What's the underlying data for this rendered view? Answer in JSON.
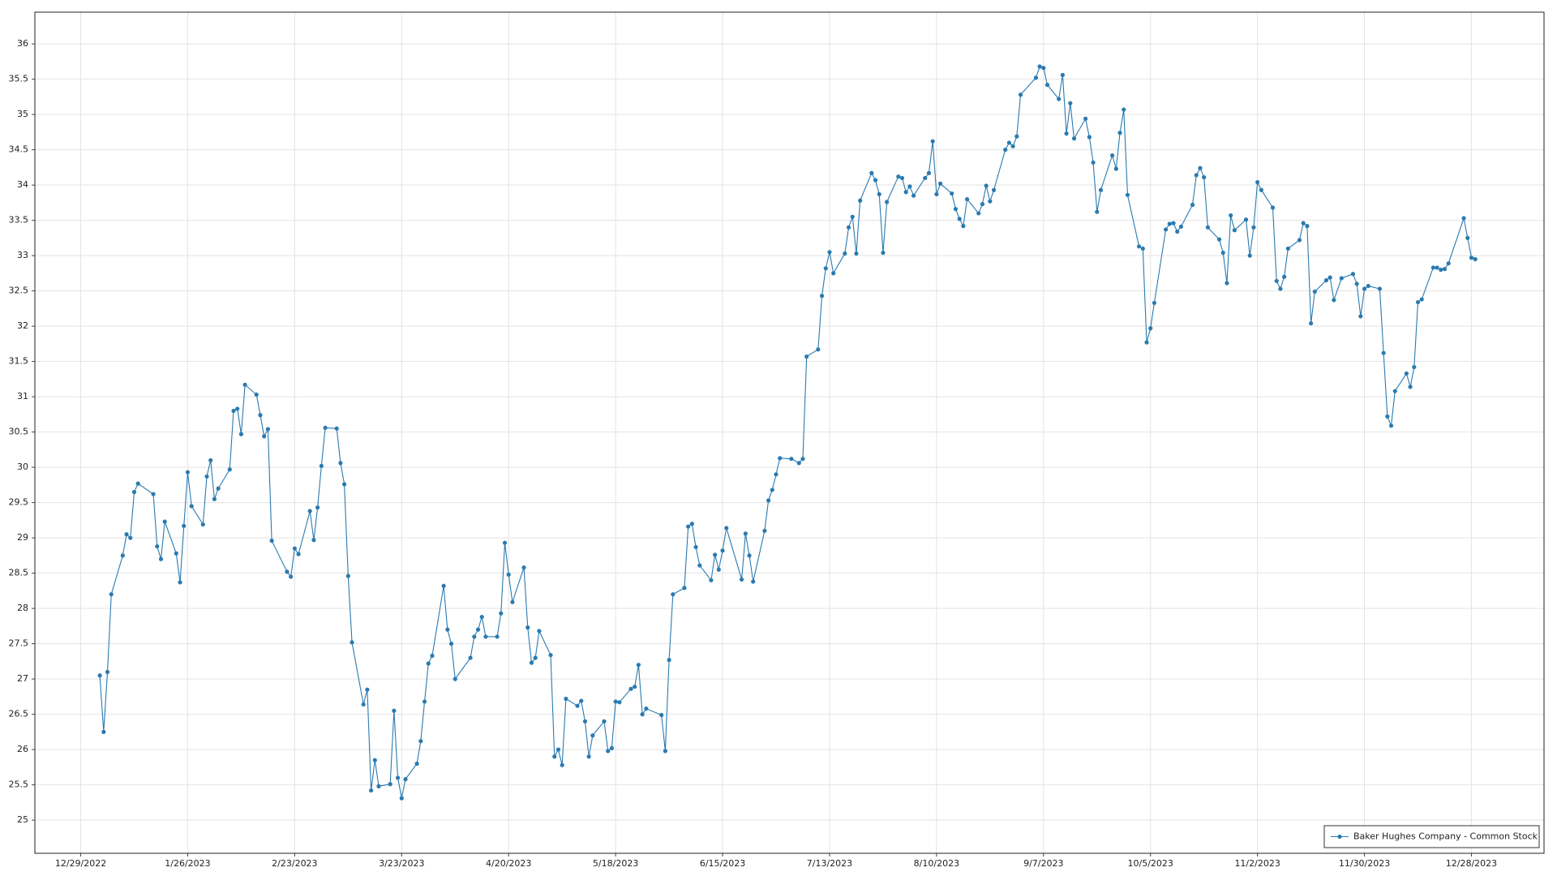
{
  "chart_data": {
    "type": "line",
    "x": [
      "1/3/2023",
      "1/4/2023",
      "1/5/2023",
      "1/6/2023",
      "1/9/2023",
      "1/10/2023",
      "1/11/2023",
      "1/12/2023",
      "1/13/2023",
      "1/17/2023",
      "1/18/2023",
      "1/19/2023",
      "1/20/2023",
      "1/23/2023",
      "1/24/2023",
      "1/25/2023",
      "1/26/2023",
      "1/27/2023",
      "1/30/2023",
      "1/31/2023",
      "2/1/2023",
      "2/2/2023",
      "2/3/2023",
      "2/6/2023",
      "2/7/2023",
      "2/8/2023",
      "2/9/2023",
      "2/10/2023",
      "2/13/2023",
      "2/14/2023",
      "2/15/2023",
      "2/16/2023",
      "2/17/2023",
      "2/21/2023",
      "2/22/2023",
      "2/23/2023",
      "2/24/2023",
      "2/27/2023",
      "2/28/2023",
      "3/1/2023",
      "3/2/2023",
      "3/3/2023",
      "3/6/2023",
      "3/7/2023",
      "3/8/2023",
      "3/9/2023",
      "3/10/2023",
      "3/13/2023",
      "3/14/2023",
      "3/15/2023",
      "3/16/2023",
      "3/17/2023",
      "3/20/2023",
      "3/21/2023",
      "3/22/2023",
      "3/23/2023",
      "3/24/2023",
      "3/27/2023",
      "3/28/2023",
      "3/29/2023",
      "3/30/2023",
      "3/31/2023",
      "4/3/2023",
      "4/4/2023",
      "4/5/2023",
      "4/6/2023",
      "4/10/2023",
      "4/11/2023",
      "4/12/2023",
      "4/13/2023",
      "4/14/2023",
      "4/17/2023",
      "4/18/2023",
      "4/19/2023",
      "4/20/2023",
      "4/21/2023",
      "4/24/2023",
      "4/25/2023",
      "4/26/2023",
      "4/27/2023",
      "4/28/2023",
      "5/1/2023",
      "5/2/2023",
      "5/3/2023",
      "5/4/2023",
      "5/5/2023",
      "5/8/2023",
      "5/9/2023",
      "5/10/2023",
      "5/11/2023",
      "5/12/2023",
      "5/15/2023",
      "5/16/2023",
      "5/17/2023",
      "5/18/2023",
      "5/19/2023",
      "5/22/2023",
      "5/23/2023",
      "5/24/2023",
      "5/25/2023",
      "5/26/2023",
      "5/30/2023",
      "5/31/2023",
      "6/1/2023",
      "6/2/2023",
      "6/5/2023",
      "6/6/2023",
      "6/7/2023",
      "6/8/2023",
      "6/9/2023",
      "6/12/2023",
      "6/13/2023",
      "6/14/2023",
      "6/15/2023",
      "6/16/2023",
      "6/20/2023",
      "6/21/2023",
      "6/22/2023",
      "6/23/2023",
      "6/26/2023",
      "6/27/2023",
      "6/28/2023",
      "6/29/2023",
      "6/30/2023",
      "7/3/2023",
      "7/5/2023",
      "7/6/2023",
      "7/7/2023",
      "7/10/2023",
      "7/11/2023",
      "7/12/2023",
      "7/13/2023",
      "7/14/2023",
      "7/17/2023",
      "7/18/2023",
      "7/19/2023",
      "7/20/2023",
      "7/21/2023",
      "7/24/2023",
      "7/25/2023",
      "7/26/2023",
      "7/27/2023",
      "7/28/2023",
      "7/31/2023",
      "8/1/2023",
      "8/2/2023",
      "8/3/2023",
      "8/4/2023",
      "8/7/2023",
      "8/8/2023",
      "8/9/2023",
      "8/10/2023",
      "8/11/2023",
      "8/14/2023",
      "8/15/2023",
      "8/16/2023",
      "8/17/2023",
      "8/18/2023",
      "8/21/2023",
      "8/22/2023",
      "8/23/2023",
      "8/24/2023",
      "8/25/2023",
      "8/28/2023",
      "8/29/2023",
      "8/30/2023",
      "8/31/2023",
      "9/1/2023",
      "9/5/2023",
      "9/6/2023",
      "9/7/2023",
      "9/8/2023",
      "9/11/2023",
      "9/12/2023",
      "9/13/2023",
      "9/14/2023",
      "9/15/2023",
      "9/18/2023",
      "9/19/2023",
      "9/20/2023",
      "9/21/2023",
      "9/22/2023",
      "9/25/2023",
      "9/26/2023",
      "9/27/2023",
      "9/28/2023",
      "9/29/2023",
      "10/2/2023",
      "10/3/2023",
      "10/4/2023",
      "10/5/2023",
      "10/6/2023",
      "10/9/2023",
      "10/10/2023",
      "10/11/2023",
      "10/12/2023",
      "10/13/2023",
      "10/16/2023",
      "10/17/2023",
      "10/18/2023",
      "10/19/2023",
      "10/20/2023",
      "10/23/2023",
      "10/24/2023",
      "10/25/2023",
      "10/26/2023",
      "10/27/2023",
      "10/30/2023",
      "10/31/2023",
      "11/1/2023",
      "11/2/2023",
      "11/3/2023",
      "11/6/2023",
      "11/7/2023",
      "11/8/2023",
      "11/9/2023",
      "11/10/2023",
      "11/13/2023",
      "11/14/2023",
      "11/15/2023",
      "11/16/2023",
      "11/17/2023",
      "11/20/2023",
      "11/21/2023",
      "11/22/2023",
      "11/24/2023",
      "11/27/2023",
      "11/28/2023",
      "11/29/2023",
      "11/30/2023",
      "12/1/2023",
      "12/4/2023",
      "12/5/2023",
      "12/6/2023",
      "12/7/2023",
      "12/8/2023",
      "12/11/2023",
      "12/12/2023",
      "12/13/2023",
      "12/14/2023",
      "12/15/2023",
      "12/18/2023",
      "12/19/2023",
      "12/20/2023",
      "12/21/2023",
      "12/22/2023",
      "12/26/2023",
      "12/27/2023",
      "12/28/2023",
      "12/29/2023"
    ],
    "series": [
      {
        "name": "Baker Hughes Company - Common Stock",
        "color": "#2a7ab0",
        "values": [
          27.05,
          26.25,
          27.1,
          28.2,
          28.75,
          29.05,
          29.0,
          29.65,
          29.77,
          29.62,
          28.88,
          28.7,
          29.23,
          28.78,
          28.37,
          29.17,
          29.93,
          29.45,
          29.19,
          29.87,
          30.1,
          29.55,
          29.7,
          29.97,
          30.8,
          30.83,
          30.47,
          31.17,
          31.03,
          30.74,
          30.44,
          30.54,
          28.96,
          28.52,
          28.45,
          28.85,
          28.77,
          29.38,
          28.97,
          29.43,
          30.02,
          30.56,
          30.55,
          30.06,
          29.76,
          28.46,
          27.52,
          26.64,
          26.85,
          25.42,
          25.85,
          25.48,
          25.51,
          26.55,
          25.6,
          25.31,
          25.58,
          25.8,
          26.12,
          26.68,
          27.22,
          27.33,
          28.32,
          27.7,
          27.5,
          27.0,
          27.3,
          27.6,
          27.7,
          27.88,
          27.6,
          27.6,
          27.93,
          28.93,
          28.48,
          28.09,
          28.58,
          27.73,
          27.23,
          27.3,
          27.68,
          27.34,
          25.9,
          26.0,
          25.78,
          26.72,
          26.62,
          26.69,
          26.4,
          25.9,
          26.2,
          26.4,
          25.98,
          26.02,
          26.68,
          26.67,
          26.86,
          26.89,
          27.2,
          26.5,
          26.58,
          26.49,
          25.98,
          27.27,
          28.2,
          28.29,
          29.16,
          29.2,
          28.87,
          28.61,
          28.4,
          28.76,
          28.55,
          28.82,
          29.14,
          28.41,
          29.06,
          28.75,
          28.38,
          29.1,
          29.53,
          29.68,
          29.9,
          30.13,
          30.12,
          30.06,
          30.12,
          31.57,
          31.67,
          32.43,
          32.82,
          33.05,
          32.75,
          33.03,
          33.4,
          33.55,
          33.03,
          33.78,
          34.17,
          34.07,
          33.87,
          33.04,
          33.76,
          34.12,
          34.1,
          33.9,
          33.98,
          33.85,
          34.1,
          34.17,
          34.62,
          33.87,
          34.02,
          33.88,
          33.66,
          33.52,
          33.42,
          33.8,
          33.6,
          33.73,
          33.99,
          33.77,
          33.93,
          34.5,
          34.6,
          34.55,
          34.69,
          35.28,
          35.52,
          35.68,
          35.66,
          35.42,
          35.22,
          35.56,
          34.73,
          35.16,
          34.66,
          34.94,
          34.68,
          34.32,
          33.62,
          33.93,
          34.42,
          34.23,
          34.74,
          35.07,
          33.86,
          33.13,
          33.1,
          31.77,
          31.97,
          32.33,
          33.37,
          33.45,
          33.46,
          33.34,
          33.41,
          33.72,
          34.14,
          34.24,
          34.11,
          33.4,
          33.23,
          33.04,
          32.61,
          33.57,
          33.36,
          33.51,
          33.0,
          33.4,
          34.04,
          33.93,
          33.68,
          32.64,
          32.53,
          32.7,
          33.1,
          33.22,
          33.46,
          33.42,
          32.04,
          32.49,
          32.65,
          32.69,
          32.37,
          32.68,
          32.74,
          32.6,
          32.14,
          32.53,
          32.57,
          32.53,
          31.62,
          30.72,
          30.59,
          31.08,
          31.33,
          31.14,
          31.42,
          32.34,
          32.38,
          32.83,
          32.83,
          32.8,
          32.81,
          32.89,
          33.53,
          33.25,
          32.97,
          32.95
        ]
      }
    ],
    "xlim": [
      "12/17/2022",
      "1/16/2024"
    ],
    "xticks": [
      "12/29/2022",
      "1/26/2023",
      "2/23/2023",
      "3/23/2023",
      "4/20/2023",
      "5/18/2023",
      "6/15/2023",
      "7/13/2023",
      "8/10/2023",
      "9/7/2023",
      "10/5/2023",
      "11/2/2023",
      "11/30/2023",
      "12/28/2023"
    ],
    "ylim": [
      24.53,
      36.45
    ],
    "yticks": [
      25,
      25.5,
      26,
      26.5,
      27,
      27.5,
      28,
      28.5,
      29,
      29.5,
      30,
      30.5,
      31,
      31.5,
      32,
      32.5,
      33,
      33.5,
      34,
      34.5,
      35,
      35.5,
      36
    ],
    "grid": true,
    "legend": "lower right",
    "markers": true
  }
}
